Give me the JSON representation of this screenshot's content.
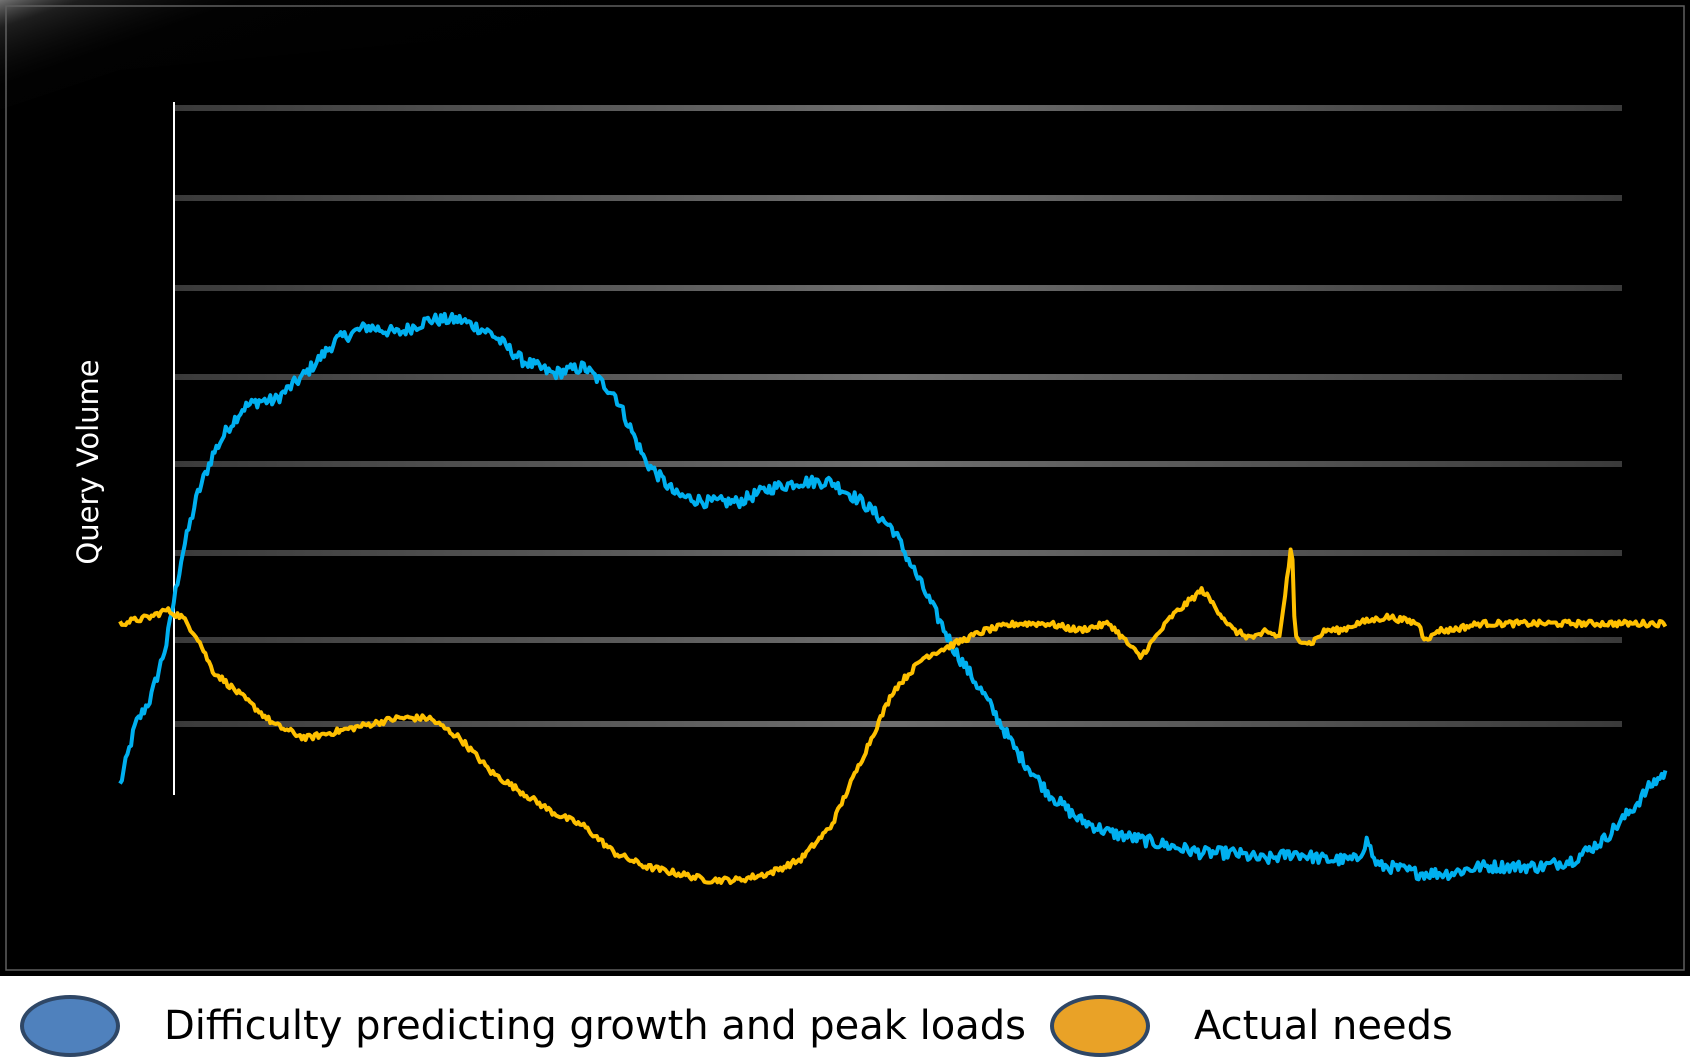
{
  "chart_data": {
    "type": "line",
    "title": "",
    "xlabel": "",
    "ylabel": "Query Volume",
    "xlim": [
      0,
      100
    ],
    "ylim": [
      0,
      100
    ],
    "grid": true,
    "legend_position": "bottom",
    "background": "#000000",
    "series": [
      {
        "name": "Difficulty predicting growth and peak loads",
        "color": "#00b0f0",
        "legend_color": "#4f81bd",
        "x": [
          0,
          1,
          2,
          3,
          4,
          5,
          6,
          7,
          8,
          9,
          10,
          12,
          14,
          16,
          18,
          20,
          22,
          24,
          26,
          28,
          30,
          32,
          34,
          36,
          38,
          40,
          42,
          44,
          46,
          48,
          50,
          52,
          54,
          56,
          58,
          60,
          62,
          64,
          66,
          68,
          70,
          72,
          74,
          76,
          78,
          80,
          80.7,
          81.1,
          81.5,
          82,
          84,
          86,
          88,
          90,
          92,
          94,
          96,
          98,
          99,
          100
        ],
        "y": [
          14,
          23,
          27,
          35,
          48,
          57,
          63,
          67,
          70,
          71,
          71,
          75,
          80,
          82,
          81,
          83,
          83,
          81,
          77,
          75,
          76,
          72,
          62,
          57,
          56,
          56,
          58,
          59,
          59,
          56,
          52,
          43,
          34,
          27,
          19,
          13,
          9,
          7,
          6,
          5,
          4,
          4,
          3,
          4,
          3,
          3,
          6,
          3,
          2,
          2,
          1,
          1,
          2,
          2,
          2,
          3,
          6,
          11,
          14,
          16
        ]
      },
      {
        "name": "Actual needs",
        "color": "#ffc000",
        "legend_color": "#e9a227",
        "x": [
          0,
          2,
          3,
          4,
          5,
          6,
          7,
          8,
          9,
          10,
          12,
          14,
          16,
          18,
          20,
          22,
          24,
          26,
          28,
          30,
          31,
          32,
          34,
          36,
          38,
          40,
          42,
          44,
          46,
          48,
          50,
          52,
          54,
          55,
          56,
          58,
          60,
          62,
          64,
          66,
          68,
          70,
          72,
          73,
          73.4,
          73.8,
          74,
          75,
          75.8,
          76,
          77,
          78,
          78.5,
          79,
          80,
          82,
          84,
          84.3,
          84.6,
          84.9,
          85.2,
          86,
          88,
          90,
          92,
          94,
          96,
          98,
          100
        ],
        "y": [
          38,
          39,
          40,
          39,
          36,
          31,
          29,
          27,
          25,
          23,
          21,
          22,
          23,
          24,
          24,
          21,
          16,
          13,
          10,
          8,
          6,
          4,
          2,
          1,
          0,
          0,
          1,
          3,
          8,
          18,
          28,
          33,
          35,
          36,
          37,
          38,
          38,
          37,
          38,
          33,
          39,
          43,
          37,
          36,
          36,
          36,
          37,
          36,
          50,
          36,
          35,
          37,
          37,
          37,
          38,
          39,
          38,
          36,
          36,
          36,
          37,
          37,
          38,
          38,
          38,
          38,
          38,
          38,
          38
        ]
      }
    ]
  }
}
